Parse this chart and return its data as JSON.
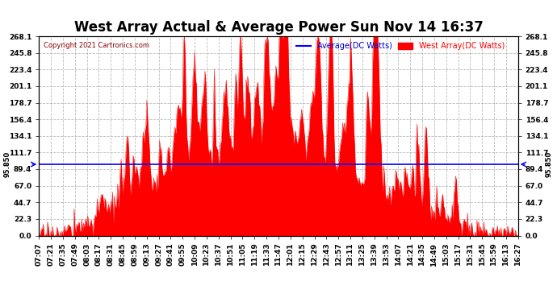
{
  "title": "West Array Actual & Average Power Sun Nov 14 16:37",
  "copyright": "Copyright 2021 Cartronics.com",
  "legend_average": "Average(DC Watts)",
  "legend_west": "West Array(DC Watts)",
  "average_value": 95.85,
  "ymax": 268.1,
  "ymin": 0.0,
  "yticks": [
    0.0,
    22.3,
    44.7,
    67.0,
    89.4,
    111.7,
    134.1,
    156.4,
    178.7,
    201.1,
    223.4,
    245.8,
    268.1
  ],
  "background_color": "#ffffff",
  "fill_color": "#ff0000",
  "avg_line_color": "#0000ff",
  "grid_color": "#aaaaaa",
  "title_fontsize": 12,
  "axis_label_fontsize": 6.5,
  "avg_label_color": "#0000cd",
  "west_label_color": "#ff0000",
  "avg_side_label": "95.850",
  "tick_times_str": [
    "07:07",
    "07:21",
    "07:35",
    "07:49",
    "08:03",
    "08:17",
    "08:31",
    "08:45",
    "08:59",
    "09:13",
    "09:27",
    "09:41",
    "09:55",
    "10:09",
    "10:23",
    "10:37",
    "10:51",
    "11:05",
    "11:19",
    "11:33",
    "11:47",
    "12:01",
    "12:15",
    "12:29",
    "12:43",
    "12:57",
    "13:11",
    "13:25",
    "13:39",
    "13:53",
    "14:07",
    "14:21",
    "14:35",
    "14:49",
    "15:03",
    "15:17",
    "15:31",
    "15:45",
    "15:59",
    "16:13",
    "16:27"
  ],
  "seed": 17
}
